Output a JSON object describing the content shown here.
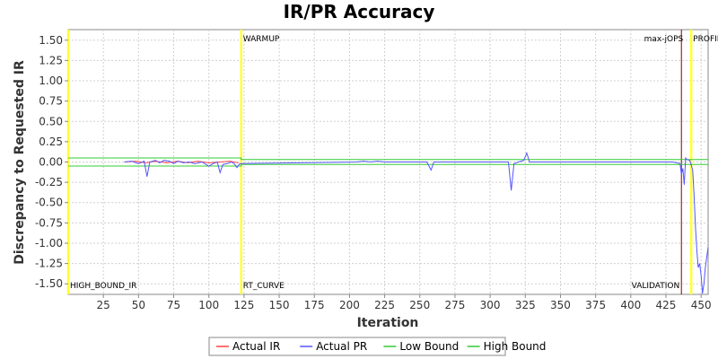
{
  "chart_data": {
    "type": "line",
    "title": "IR/PR Accuracy",
    "xlabel": "Iteration",
    "ylabel": "Discrepancy to Requested IR",
    "xlim": [
      0,
      455
    ],
    "ylim": [
      -1.63,
      1.63
    ],
    "xticks": [
      25,
      50,
      75,
      100,
      125,
      150,
      175,
      200,
      225,
      250,
      275,
      300,
      325,
      350,
      375,
      400,
      425,
      450
    ],
    "yticks": [
      1.5,
      1.25,
      1.0,
      0.75,
      0.5,
      0.25,
      0.0,
      -0.25,
      -0.5,
      -0.75,
      -1.0,
      -1.25,
      -1.5
    ],
    "ytick_labels": [
      "1.50",
      "1.25",
      "1.00",
      "0.75",
      "0.50",
      "0.25",
      "0.00",
      "-0.25",
      "-0.50",
      "-0.75",
      "-1.00",
      "-1.25",
      "-1.50"
    ],
    "grid": true,
    "legend_position": "bottom",
    "series": [
      {
        "name": "Actual IR",
        "color": "#ff4444",
        "points": [
          [
            40,
            0.0
          ],
          [
            48,
            0.01
          ],
          [
            55,
            -0.01
          ],
          [
            62,
            0.01
          ],
          [
            70,
            -0.01
          ],
          [
            78,
            0.01
          ],
          [
            85,
            -0.01
          ],
          [
            92,
            0.01
          ],
          [
            100,
            -0.01
          ],
          [
            108,
            0.0
          ],
          [
            115,
            0.01
          ],
          [
            121,
            -0.01
          ]
        ]
      },
      {
        "name": "Actual PR",
        "color": "#5555ff",
        "points": [
          [
            40,
            0.0
          ],
          [
            45,
            0.01
          ],
          [
            50,
            -0.02
          ],
          [
            54,
            0.01
          ],
          [
            56,
            -0.18
          ],
          [
            58,
            0.0
          ],
          [
            62,
            0.02
          ],
          [
            65,
            -0.01
          ],
          [
            68,
            0.02
          ],
          [
            72,
            0.01
          ],
          [
            75,
            -0.02
          ],
          [
            78,
            0.01
          ],
          [
            82,
            -0.01
          ],
          [
            86,
            0.0
          ],
          [
            90,
            -0.02
          ],
          [
            95,
            0.0
          ],
          [
            100,
            -0.05
          ],
          [
            103,
            -0.02
          ],
          [
            106,
            0.0
          ],
          [
            108,
            -0.13
          ],
          [
            110,
            -0.03
          ],
          [
            113,
            -0.02
          ],
          [
            116,
            0.0
          ],
          [
            118,
            -0.02
          ],
          [
            120,
            -0.07
          ],
          [
            122,
            -0.02
          ],
          [
            205,
            0.0
          ],
          [
            210,
            0.01
          ],
          [
            215,
            0.0
          ],
          [
            220,
            0.01
          ],
          [
            225,
            0.0
          ],
          [
            240,
            0.0
          ],
          [
            255,
            0.0
          ],
          [
            258,
            -0.1
          ],
          [
            260,
            0.0
          ],
          [
            270,
            0.0
          ],
          [
            290,
            0.0
          ],
          [
            300,
            0.0
          ],
          [
            313,
            0.0
          ],
          [
            315,
            -0.35
          ],
          [
            317,
            -0.02
          ],
          [
            320,
            0.0
          ],
          [
            324,
            0.02
          ],
          [
            326,
            0.11
          ],
          [
            328,
            0.0
          ],
          [
            335,
            0.0
          ],
          [
            345,
            0.0
          ],
          [
            355,
            0.0
          ],
          [
            365,
            0.0
          ],
          [
            380,
            0.0
          ],
          [
            390,
            0.0
          ],
          [
            400,
            0.0
          ],
          [
            410,
            0.0
          ],
          [
            420,
            0.0
          ],
          [
            430,
            0.0
          ],
          [
            435,
            -0.02
          ],
          [
            436,
            -0.15
          ],
          [
            437,
            -0.08
          ],
          [
            438,
            -0.28
          ],
          [
            439,
            0.05
          ],
          [
            440,
            0.03
          ],
          [
            442,
            0.02
          ],
          [
            444,
            -0.1
          ],
          [
            445,
            -0.4
          ],
          [
            446,
            -0.8
          ],
          [
            447,
            -1.1
          ],
          [
            448,
            -1.3
          ],
          [
            449,
            -1.25
          ],
          [
            450,
            -1.4
          ],
          [
            451,
            -1.62
          ],
          [
            452,
            -1.5
          ],
          [
            453,
            -1.3
          ],
          [
            455,
            -1.05
          ]
        ]
      },
      {
        "name": "Low Bound",
        "color": "#33cc33",
        "points": [
          [
            0,
            -0.05
          ],
          [
            123,
            -0.05
          ],
          [
            123,
            -0.03
          ],
          [
            455,
            -0.03
          ]
        ]
      },
      {
        "name": "High Bound",
        "color": "#33cc33",
        "points": [
          [
            0,
            0.05
          ],
          [
            123,
            0.05
          ],
          [
            123,
            0.03
          ],
          [
            455,
            0.03
          ]
        ]
      }
    ],
    "markers": [
      {
        "x": 123,
        "color": "#ffff33",
        "top_label": "WARMUP",
        "bottom_label": "RT_CURVE"
      },
      {
        "x": 436,
        "color": "#880000",
        "top_label": "max-jOPS",
        "bottom_label": "VALIDATION"
      },
      {
        "x": 443,
        "color": "#ffff33",
        "top_label": "PROFILE",
        "bottom_label": ""
      },
      {
        "x": 0,
        "color": "#ffff33",
        "top_label": "",
        "bottom_label": "HIGH_BOUND_IR"
      }
    ]
  }
}
